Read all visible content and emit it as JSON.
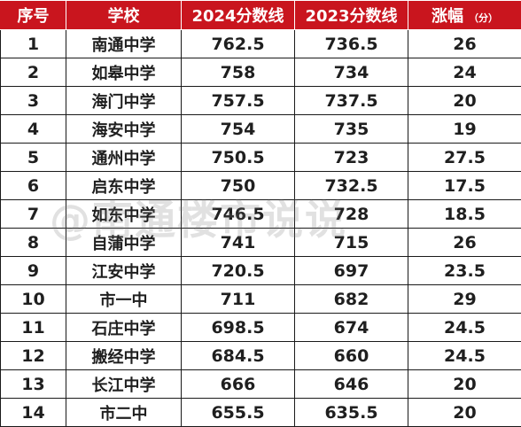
{
  "table": {
    "headers": {
      "index": "序号",
      "school": "学校",
      "score_2024": "2024分数线",
      "score_2023": "2023分数线",
      "rise": "涨幅",
      "rise_unit": "（分）"
    },
    "rows": [
      {
        "index": "1",
        "school": "南通中学",
        "score_2024": "762.5",
        "score_2023": "736.5",
        "rise": "26"
      },
      {
        "index": "2",
        "school": "如皋中学",
        "score_2024": "758",
        "score_2023": "734",
        "rise": "24"
      },
      {
        "index": "3",
        "school": "海门中学",
        "score_2024": "757.5",
        "score_2023": "737.5",
        "rise": "20"
      },
      {
        "index": "4",
        "school": "海安中学",
        "score_2024": "754",
        "score_2023": "735",
        "rise": "19"
      },
      {
        "index": "5",
        "school": "通州中学",
        "score_2024": "750.5",
        "score_2023": "723",
        "rise": "27.5"
      },
      {
        "index": "6",
        "school": "启东中学",
        "score_2024": "750",
        "score_2023": "732.5",
        "rise": "17.5"
      },
      {
        "index": "7",
        "school": "如东中学",
        "score_2024": "746.5",
        "score_2023": "728",
        "rise": "18.5"
      },
      {
        "index": "8",
        "school": "自蒲中学",
        "score_2024": "741",
        "score_2023": "715",
        "rise": "26"
      },
      {
        "index": "9",
        "school": "江安中学",
        "score_2024": "720.5",
        "score_2023": "697",
        "rise": "23.5"
      },
      {
        "index": "10",
        "school": "市一中",
        "score_2024": "711",
        "score_2023": "682",
        "rise": "29"
      },
      {
        "index": "11",
        "school": "石庄中学",
        "score_2024": "698.5",
        "score_2023": "674",
        "rise": "24.5"
      },
      {
        "index": "12",
        "school": "搬经中学",
        "score_2024": "684.5",
        "score_2023": "660",
        "rise": "24.5"
      },
      {
        "index": "13",
        "school": "长江中学",
        "score_2024": "666",
        "score_2023": "646",
        "rise": "20"
      },
      {
        "index": "14",
        "school": "市二中",
        "score_2024": "655.5",
        "score_2023": "635.5",
        "rise": "20"
      }
    ]
  },
  "watermark": {
    "text": "@南通楼市说说"
  },
  "colors": {
    "header_bg": "#c9151e",
    "header_text": "#ffffff",
    "cell_text": "#1f1f1f",
    "grid": "#1a1a1a"
  }
}
